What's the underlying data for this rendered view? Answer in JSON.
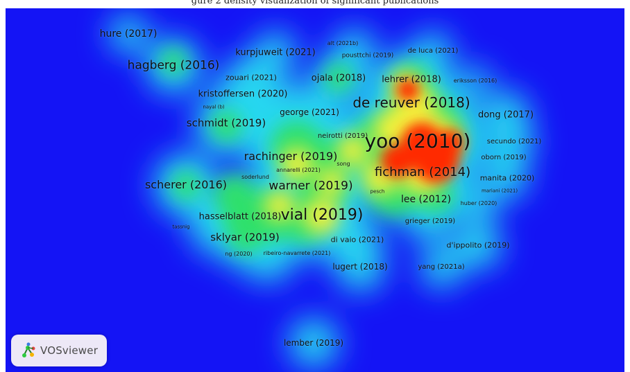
{
  "header_cutoff_text": "gure 2 density visualization of significant publications",
  "brand": "VOSviewer",
  "colors": {
    "background": "#1414f5",
    "low": "#26d7f0",
    "mid": "#2ee06a",
    "high": "#f4f03a",
    "peak": "#ff2a00"
  },
  "labels": [
    {
      "text": "hure (2017)",
      "size": 14
    },
    {
      "text": "hagberg (2016)",
      "size": 17
    },
    {
      "text": "kurpjuweit (2021)",
      "size": 13
    },
    {
      "text": "alt (2021b)",
      "size": 8
    },
    {
      "text": "pousttchi (2019)",
      "size": 9
    },
    {
      "text": "de luca (2021)",
      "size": 10
    },
    {
      "text": "zouari (2021)",
      "size": 11
    },
    {
      "text": "ojala (2018)",
      "size": 13
    },
    {
      "text": "lehrer (2018)",
      "size": 13
    },
    {
      "text": "eriksson (2016)",
      "size": 8
    },
    {
      "text": "kristoffersen (2020)",
      "size": 13
    },
    {
      "text": "de reuver (2018)",
      "size": 20
    },
    {
      "text": "nayal (b)",
      "size": 7
    },
    {
      "text": "george (2021)",
      "size": 12
    },
    {
      "text": "dong (2017)",
      "size": 13
    },
    {
      "text": "schmidt (2019)",
      "size": 15
    },
    {
      "text": "neirotti (2019)",
      "size": 10
    },
    {
      "text": "yoo (2010)",
      "size": 28
    },
    {
      "text": "secundo (2021)",
      "size": 10
    },
    {
      "text": "rachinger (2019)",
      "size": 16
    },
    {
      "text": "song",
      "size": 8
    },
    {
      "text": "oborn (2019)",
      "size": 10
    },
    {
      "text": "annarelli (2021)",
      "size": 8
    },
    {
      "text": "fichman (2014)",
      "size": 18
    },
    {
      "text": "soderlund",
      "size": 8
    },
    {
      "text": "manita (2020)",
      "size": 11
    },
    {
      "text": "scherer (2016)",
      "size": 16
    },
    {
      "text": "warner (2019)",
      "size": 17
    },
    {
      "text": "mariani (2021)",
      "size": 7
    },
    {
      "text": "pesch",
      "size": 7
    },
    {
      "text": "lee (2012)",
      "size": 14
    },
    {
      "text": "huber (2020)",
      "size": 8
    },
    {
      "text": "hasselblatt (2018)",
      "size": 13
    },
    {
      "text": "vial (2019)",
      "size": 22
    },
    {
      "text": "grieger (2019)",
      "size": 10
    },
    {
      "text": "tassnig",
      "size": 7
    },
    {
      "text": "sklyar (2019)",
      "size": 15
    },
    {
      "text": "di vaio (2021)",
      "size": 11
    },
    {
      "text": "d'ippolito (2019)",
      "size": 11
    },
    {
      "text": "ng (2020)",
      "size": 8
    },
    {
      "text": "ribeiro-navarrete (2021)",
      "size": 8
    },
    {
      "text": "lugert (2018)",
      "size": 12
    },
    {
      "text": "yang (2021a)",
      "size": 10
    },
    {
      "text": "lember (2019)",
      "size": 12
    }
  ]
}
